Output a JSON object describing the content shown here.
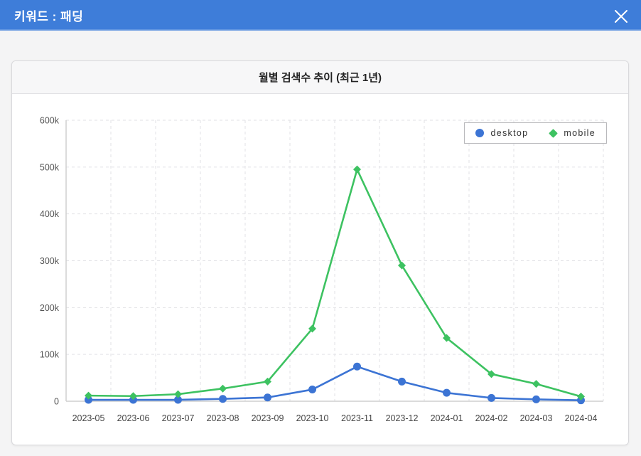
{
  "modal": {
    "title": "키워드 : 패딩"
  },
  "panel": {
    "title": "월별 검색수 추이 (최근 1년)"
  },
  "legend": {
    "position": "top-right",
    "items": [
      {
        "label": "desktop",
        "marker": "circle",
        "color": "#3c74d4"
      },
      {
        "label": "mobile",
        "marker": "diamond",
        "color": "#3dc261"
      }
    ]
  },
  "colors": {
    "header_bar": "#3e7dd9",
    "desktop_series": "#3c74d4",
    "mobile_series": "#3dc261",
    "grid_line": "#e2e2e6",
    "axis_line": "#cfcfcf",
    "tick_text": "#555555"
  },
  "chart_data": {
    "type": "line",
    "title": "월별 검색수 추이 (최근 1년)",
    "categories": [
      "2023-05",
      "2023-06",
      "2023-07",
      "2023-08",
      "2023-09",
      "2023-10",
      "2023-11",
      "2023-12",
      "2024-01",
      "2024-02",
      "2024-03",
      "2024-04"
    ],
    "series": [
      {
        "name": "desktop",
        "color": "#3c74d4",
        "marker": "circle",
        "values": [
          3000,
          3000,
          3000,
          5000,
          8000,
          25000,
          74000,
          42000,
          18000,
          7000,
          4000,
          2000
        ]
      },
      {
        "name": "mobile",
        "color": "#3dc261",
        "marker": "diamond",
        "values": [
          12000,
          11000,
          15000,
          27000,
          42000,
          155000,
          495000,
          290000,
          135000,
          58000,
          37000,
          10000
        ]
      }
    ],
    "xlabel": "",
    "ylabel": "",
    "ylim": [
      0,
      600000
    ],
    "ytick_step": 100000,
    "ytick_labels": [
      "0",
      "100k",
      "200k",
      "300k",
      "400k",
      "500k",
      "600k"
    ],
    "grid": "dashed",
    "legend_position": "top-right"
  }
}
